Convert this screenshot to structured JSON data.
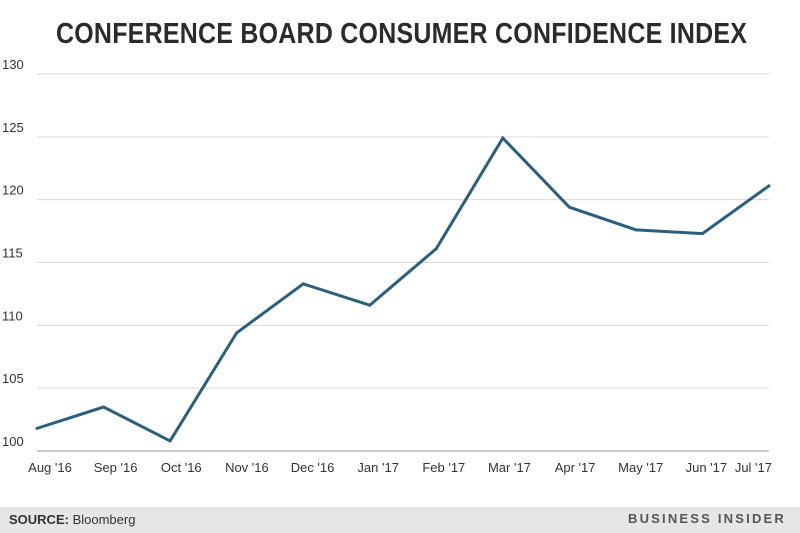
{
  "chart_data": {
    "type": "line",
    "title": "CONFERENCE BOARD CONSUMER CONFIDENCE INDEX",
    "xlabel": "",
    "ylabel": "",
    "categories": [
      "Aug '16",
      "Sep '16",
      "Oct '16",
      "Nov '16",
      "Dec '16",
      "Jan '17",
      "Feb '17",
      "Mar '17",
      "Apr '17",
      "May '17",
      "Jun '17",
      "Jul '17"
    ],
    "series": [
      {
        "name": "Consumer Confidence Index",
        "values": [
          101.8,
          103.5,
          100.8,
          109.4,
          113.3,
          111.6,
          116.1,
          124.9,
          119.4,
          117.6,
          117.3,
          121.1
        ],
        "color": "#2a5f7e"
      }
    ],
    "yticks": [
      100,
      105,
      110,
      115,
      120,
      125,
      130
    ],
    "ylim": [
      100,
      130
    ],
    "grid": true
  },
  "footer": {
    "source_label": "SOURCE:",
    "source_value": "Bloomberg",
    "brand": "BUSINESS INSIDER"
  },
  "colors": {
    "line": "#2a5f7e",
    "grid": "#d9d9d9",
    "footer_bg": "#e6e6e6"
  }
}
